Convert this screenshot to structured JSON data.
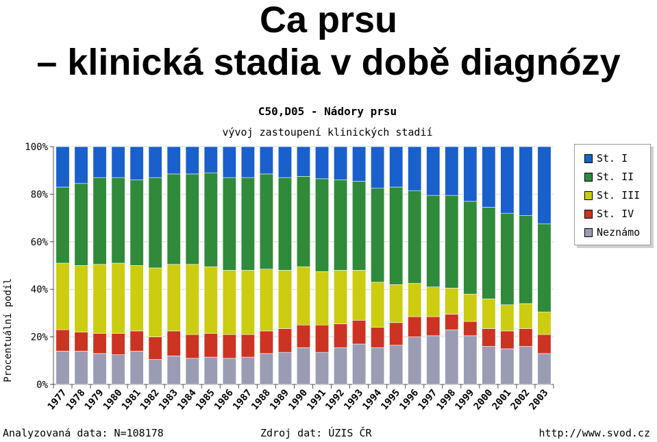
{
  "slide": {
    "title_line1": "Ca prsu",
    "title_line2": "– klinická stadia v době diagnózy"
  },
  "footer": {
    "left": "Analyzovaná data: N=108178",
    "middle": "Zdroj dat: ÚZIS ČR",
    "right": "http://www.svod.cz"
  },
  "chart_data": {
    "type": "bar",
    "stacked": true,
    "title": "C50,D05 - Nádory prsu",
    "subtitle": "vývoj zastoupení klinických stadií",
    "xlabel": "",
    "ylabel": "Procentuální podíl",
    "ylim": [
      0,
      100
    ],
    "yticks": [
      "0%",
      "20%",
      "40%",
      "60%",
      "80%",
      "100%"
    ],
    "grid": true,
    "legend_position": "right",
    "categories": [
      "1977",
      "1978",
      "1979",
      "1980",
      "1981",
      "1982",
      "1983",
      "1984",
      "1985",
      "1986",
      "1987",
      "1988",
      "1989",
      "1990",
      "1991",
      "1992",
      "1993",
      "1994",
      "1995",
      "1996",
      "1997",
      "1998",
      "1999",
      "2000",
      "2001",
      "2002",
      "2003"
    ],
    "series": [
      {
        "name": "Neznámo",
        "color": "#9b9cb4",
        "values": [
          14,
          14,
          13,
          12.5,
          14,
          10.5,
          12,
          11,
          11.5,
          11,
          11.5,
          13,
          13.5,
          15.5,
          13.5,
          15.5,
          17,
          15.5,
          16.5,
          20,
          20.5,
          23,
          20.5,
          16,
          15,
          16,
          13
        ]
      },
      {
        "name": "St. IV",
        "color": "#cc3322",
        "values": [
          9,
          8,
          8.5,
          9,
          8.5,
          9.5,
          10.5,
          10,
          10,
          10,
          9.5,
          9.5,
          10,
          9.5,
          11.5,
          10,
          10,
          8.5,
          9.5,
          8.5,
          8,
          6.5,
          6,
          7.5,
          7.5,
          7.5,
          8
        ]
      },
      {
        "name": "St. III",
        "color": "#cccc11",
        "values": [
          28,
          28,
          29,
          29.5,
          27.5,
          29,
          28,
          29.5,
          28,
          27,
          27,
          26,
          24.5,
          24.5,
          22.5,
          22.5,
          21,
          19,
          16,
          14,
          12.5,
          11,
          11.5,
          12.5,
          11,
          10.5,
          9.5
        ]
      },
      {
        "name": "St. II",
        "color": "#2f8a3a",
        "values": [
          32,
          34.5,
          36.5,
          36,
          36,
          38,
          38,
          38,
          39.5,
          39,
          39,
          40,
          39,
          38,
          39,
          38,
          37.5,
          39.5,
          41,
          39,
          38.5,
          39,
          39,
          38.5,
          38.5,
          37,
          37
        ]
      },
      {
        "name": "St. I",
        "color": "#1a60cc",
        "values": [
          17,
          15.5,
          13,
          13,
          14,
          13,
          11.5,
          11.5,
          11,
          13,
          13,
          11.5,
          13,
          12.5,
          13.5,
          14,
          14.5,
          17.5,
          17,
          18.5,
          20.5,
          20.5,
          23,
          25.5,
          28,
          29,
          32.5
        ]
      }
    ]
  },
  "legend_order": [
    "St. I",
    "St. II",
    "St. III",
    "St. IV",
    "Neznámo"
  ]
}
